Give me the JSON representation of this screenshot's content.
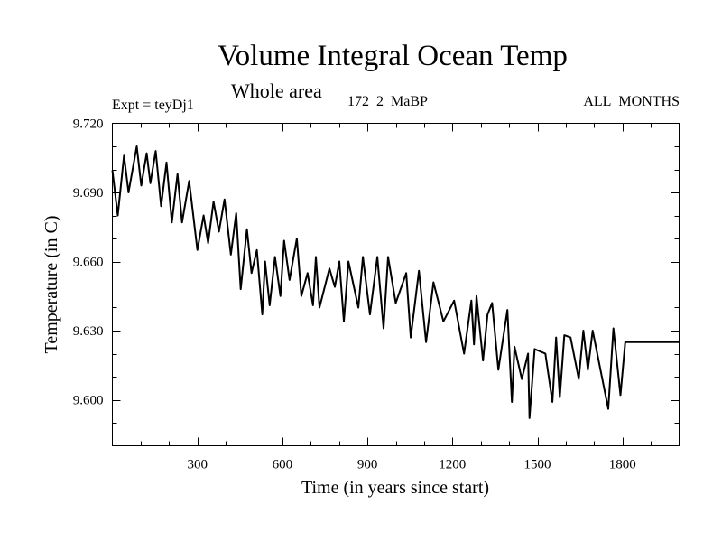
{
  "chart_data": {
    "type": "line",
    "title": "Volume Integral Ocean Temp",
    "subtitle": "Whole area",
    "left_label": "Expt = teyDj1",
    "center_label": "172_2_MaBP",
    "right_label": "ALL_MONTHS",
    "xlabel": "Time (in years since start)",
    "ylabel": "Temperature (in C)",
    "xlim": [
      0,
      2000
    ],
    "ylim": [
      9.58,
      9.72
    ],
    "xticks": [
      300,
      600,
      900,
      1200,
      1500,
      1800
    ],
    "xtick_labels": [
      "300",
      "600",
      "900",
      "1200",
      "1500",
      "1800"
    ],
    "x_minor_step": 100,
    "yticks": [
      9.72,
      9.69,
      9.66,
      9.63,
      9.6
    ],
    "ytick_labels": [
      "9.720",
      "9.690",
      "9.660",
      "9.630",
      "9.600"
    ],
    "y_minor_step": 0.01,
    "grid": false,
    "line_color": "#000000",
    "series": [
      {
        "name": "Volume Integral Ocean Temp",
        "x": [
          0,
          19,
          41,
          57,
          86,
          102,
          121,
          134,
          153,
          172,
          191,
          210,
          230,
          246,
          271,
          300,
          322,
          338,
          357,
          376,
          396,
          418,
          437,
          453,
          475,
          491,
          510,
          529,
          539,
          555,
          574,
          593,
          606,
          625,
          651,
          667,
          689,
          708,
          718,
          731,
          766,
          785,
          801,
          817,
          833,
          868,
          884,
          909,
          935,
          957,
          973,
          1000,
          1037,
          1053,
          1082,
          1107,
          1133,
          1168,
          1206,
          1241,
          1267,
          1276,
          1285,
          1308,
          1324,
          1340,
          1362,
          1394,
          1410,
          1419,
          1445,
          1467,
          1472,
          1490,
          1528,
          1553,
          1566,
          1579,
          1595,
          1617,
          1646,
          1662,
          1678,
          1695,
          1750,
          1768,
          1793,
          1810,
          1833,
          1858,
          1866,
          1892,
          1927,
          1946,
          1990,
          2000
        ],
        "y": [
          9.6996,
          9.68,
          9.706,
          9.69,
          9.71,
          9.693,
          9.707,
          9.694,
          9.708,
          9.684,
          9.703,
          9.677,
          9.698,
          9.677,
          9.695,
          9.665,
          9.68,
          9.668,
          9.686,
          9.673,
          9.687,
          9.663,
          9.681,
          9.648,
          9.674,
          9.655,
          9.665,
          9.637,
          9.66,
          9.641,
          9.662,
          9.645,
          9.669,
          9.652,
          9.67,
          9.645,
          9.655,
          9.641,
          9.662,
          9.64,
          9.657,
          9.649,
          9.66,
          9.634,
          9.66,
          9.64,
          9.662,
          9.637,
          9.662,
          9.631,
          9.662,
          9.642,
          9.655,
          9.627,
          9.656,
          9.625,
          9.651,
          9.634,
          9.643,
          9.62,
          9.643,
          9.624,
          9.645,
          9.617,
          9.637,
          9.642,
          9.613,
          9.639,
          9.599,
          9.623,
          9.609,
          9.62,
          9.592,
          9.622,
          9.62,
          9.599,
          9.627,
          9.601,
          9.628,
          9.627,
          9.609,
          9.63,
          9.613,
          9.63,
          9.596,
          9.631,
          9.602,
          9.625,
          9.625,
          9.625,
          9.625,
          9.625,
          9.625,
          9.625,
          9.625,
          9.625
        ]
      }
    ]
  }
}
